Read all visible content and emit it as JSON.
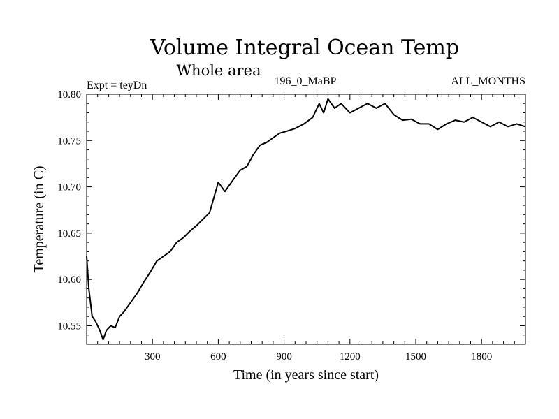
{
  "chart_data": {
    "type": "line",
    "title": "Volume Integral Ocean Temp",
    "subtitle": "Whole area",
    "header_left": "Expt = teyDn",
    "header_center": "196_0_MaBP",
    "header_right": "ALL_MONTHS",
    "xlabel": "Time (in years since start)",
    "ylabel": "Temperature (in C)",
    "xlim": [
      0,
      2000
    ],
    "ylim": [
      10.53,
      10.8
    ],
    "xticks": [
      300,
      600,
      900,
      1200,
      1500,
      1800
    ],
    "xtick_labels": [
      "300",
      "600",
      "900",
      "1200",
      "1500",
      "1800"
    ],
    "yticks": [
      10.55,
      10.6,
      10.65,
      10.7,
      10.75,
      10.8
    ],
    "ytick_labels": [
      "10.55",
      "10.60",
      "10.65",
      "10.70",
      "10.75",
      "10.80"
    ],
    "grid": false,
    "series": [
      {
        "name": "Volume Integral Ocean Temp",
        "color": "#000000",
        "x": [
          0,
          10,
          25,
          40,
          60,
          75,
          90,
          110,
          130,
          150,
          170,
          200,
          230,
          260,
          290,
          320,
          350,
          380,
          410,
          440,
          470,
          500,
          530,
          560,
          600,
          630,
          660,
          700,
          730,
          760,
          790,
          820,
          850,
          880,
          910,
          950,
          990,
          1030,
          1060,
          1080,
          1100,
          1130,
          1160,
          1200,
          1240,
          1280,
          1320,
          1360,
          1400,
          1440,
          1480,
          1520,
          1560,
          1600,
          1640,
          1680,
          1720,
          1760,
          1800,
          1840,
          1880,
          1920,
          1960,
          2000
        ],
        "values": [
          10.625,
          10.59,
          10.56,
          10.555,
          10.545,
          10.535,
          10.545,
          10.55,
          10.548,
          10.56,
          10.565,
          10.575,
          10.585,
          10.597,
          10.608,
          10.62,
          10.625,
          10.63,
          10.64,
          10.645,
          10.652,
          10.658,
          10.665,
          10.672,
          10.705,
          10.695,
          10.705,
          10.718,
          10.722,
          10.735,
          10.745,
          10.748,
          10.753,
          10.758,
          10.76,
          10.763,
          10.768,
          10.775,
          10.79,
          10.78,
          10.795,
          10.785,
          10.79,
          10.78,
          10.785,
          10.79,
          10.785,
          10.79,
          10.778,
          10.772,
          10.773,
          10.768,
          10.768,
          10.762,
          10.768,
          10.772,
          10.77,
          10.775,
          10.77,
          10.765,
          10.77,
          10.765,
          10.768,
          10.765
        ]
      }
    ]
  }
}
